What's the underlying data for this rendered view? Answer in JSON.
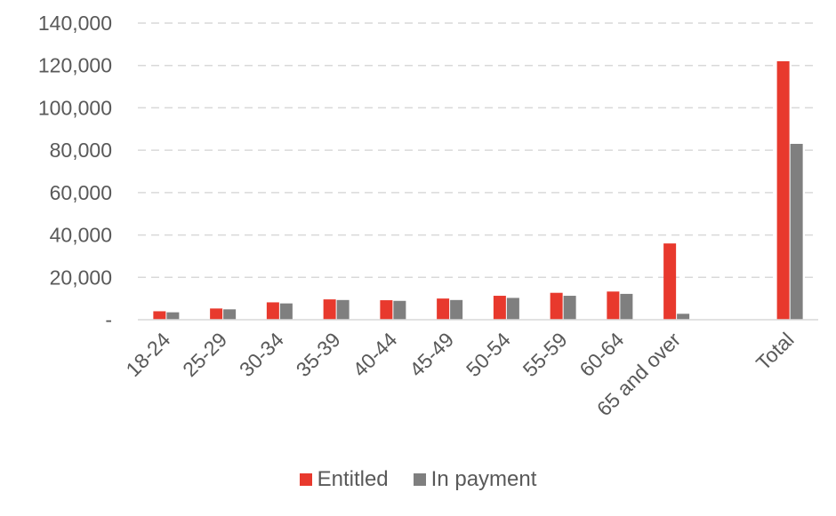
{
  "chart_data": {
    "type": "bar",
    "categories": [
      "18-24",
      "25-29",
      "30-34",
      "35-39",
      "40-44",
      "45-49",
      "50-54",
      "55-59",
      "60-64",
      "65 and over",
      "",
      "Total"
    ],
    "series": [
      {
        "name": "Entitled",
        "color": "#e8392d",
        "values": [
          4000,
          5300,
          8200,
          9600,
          9200,
          10000,
          11300,
          12700,
          13300,
          36000,
          null,
          122000
        ]
      },
      {
        "name": "In payment",
        "color": "#7f7f7f",
        "values": [
          3500,
          4900,
          7700,
          9300,
          8900,
          9300,
          10300,
          11300,
          12200,
          2800,
          null,
          83000
        ]
      }
    ],
    "y_ticks": [
      "-",
      "20,000",
      "40,000",
      "60,000",
      "80,000",
      "100,000",
      "120,000",
      "140,000"
    ],
    "ylim": [
      0,
      140000
    ],
    "grid": true,
    "legend_position": "bottom"
  }
}
